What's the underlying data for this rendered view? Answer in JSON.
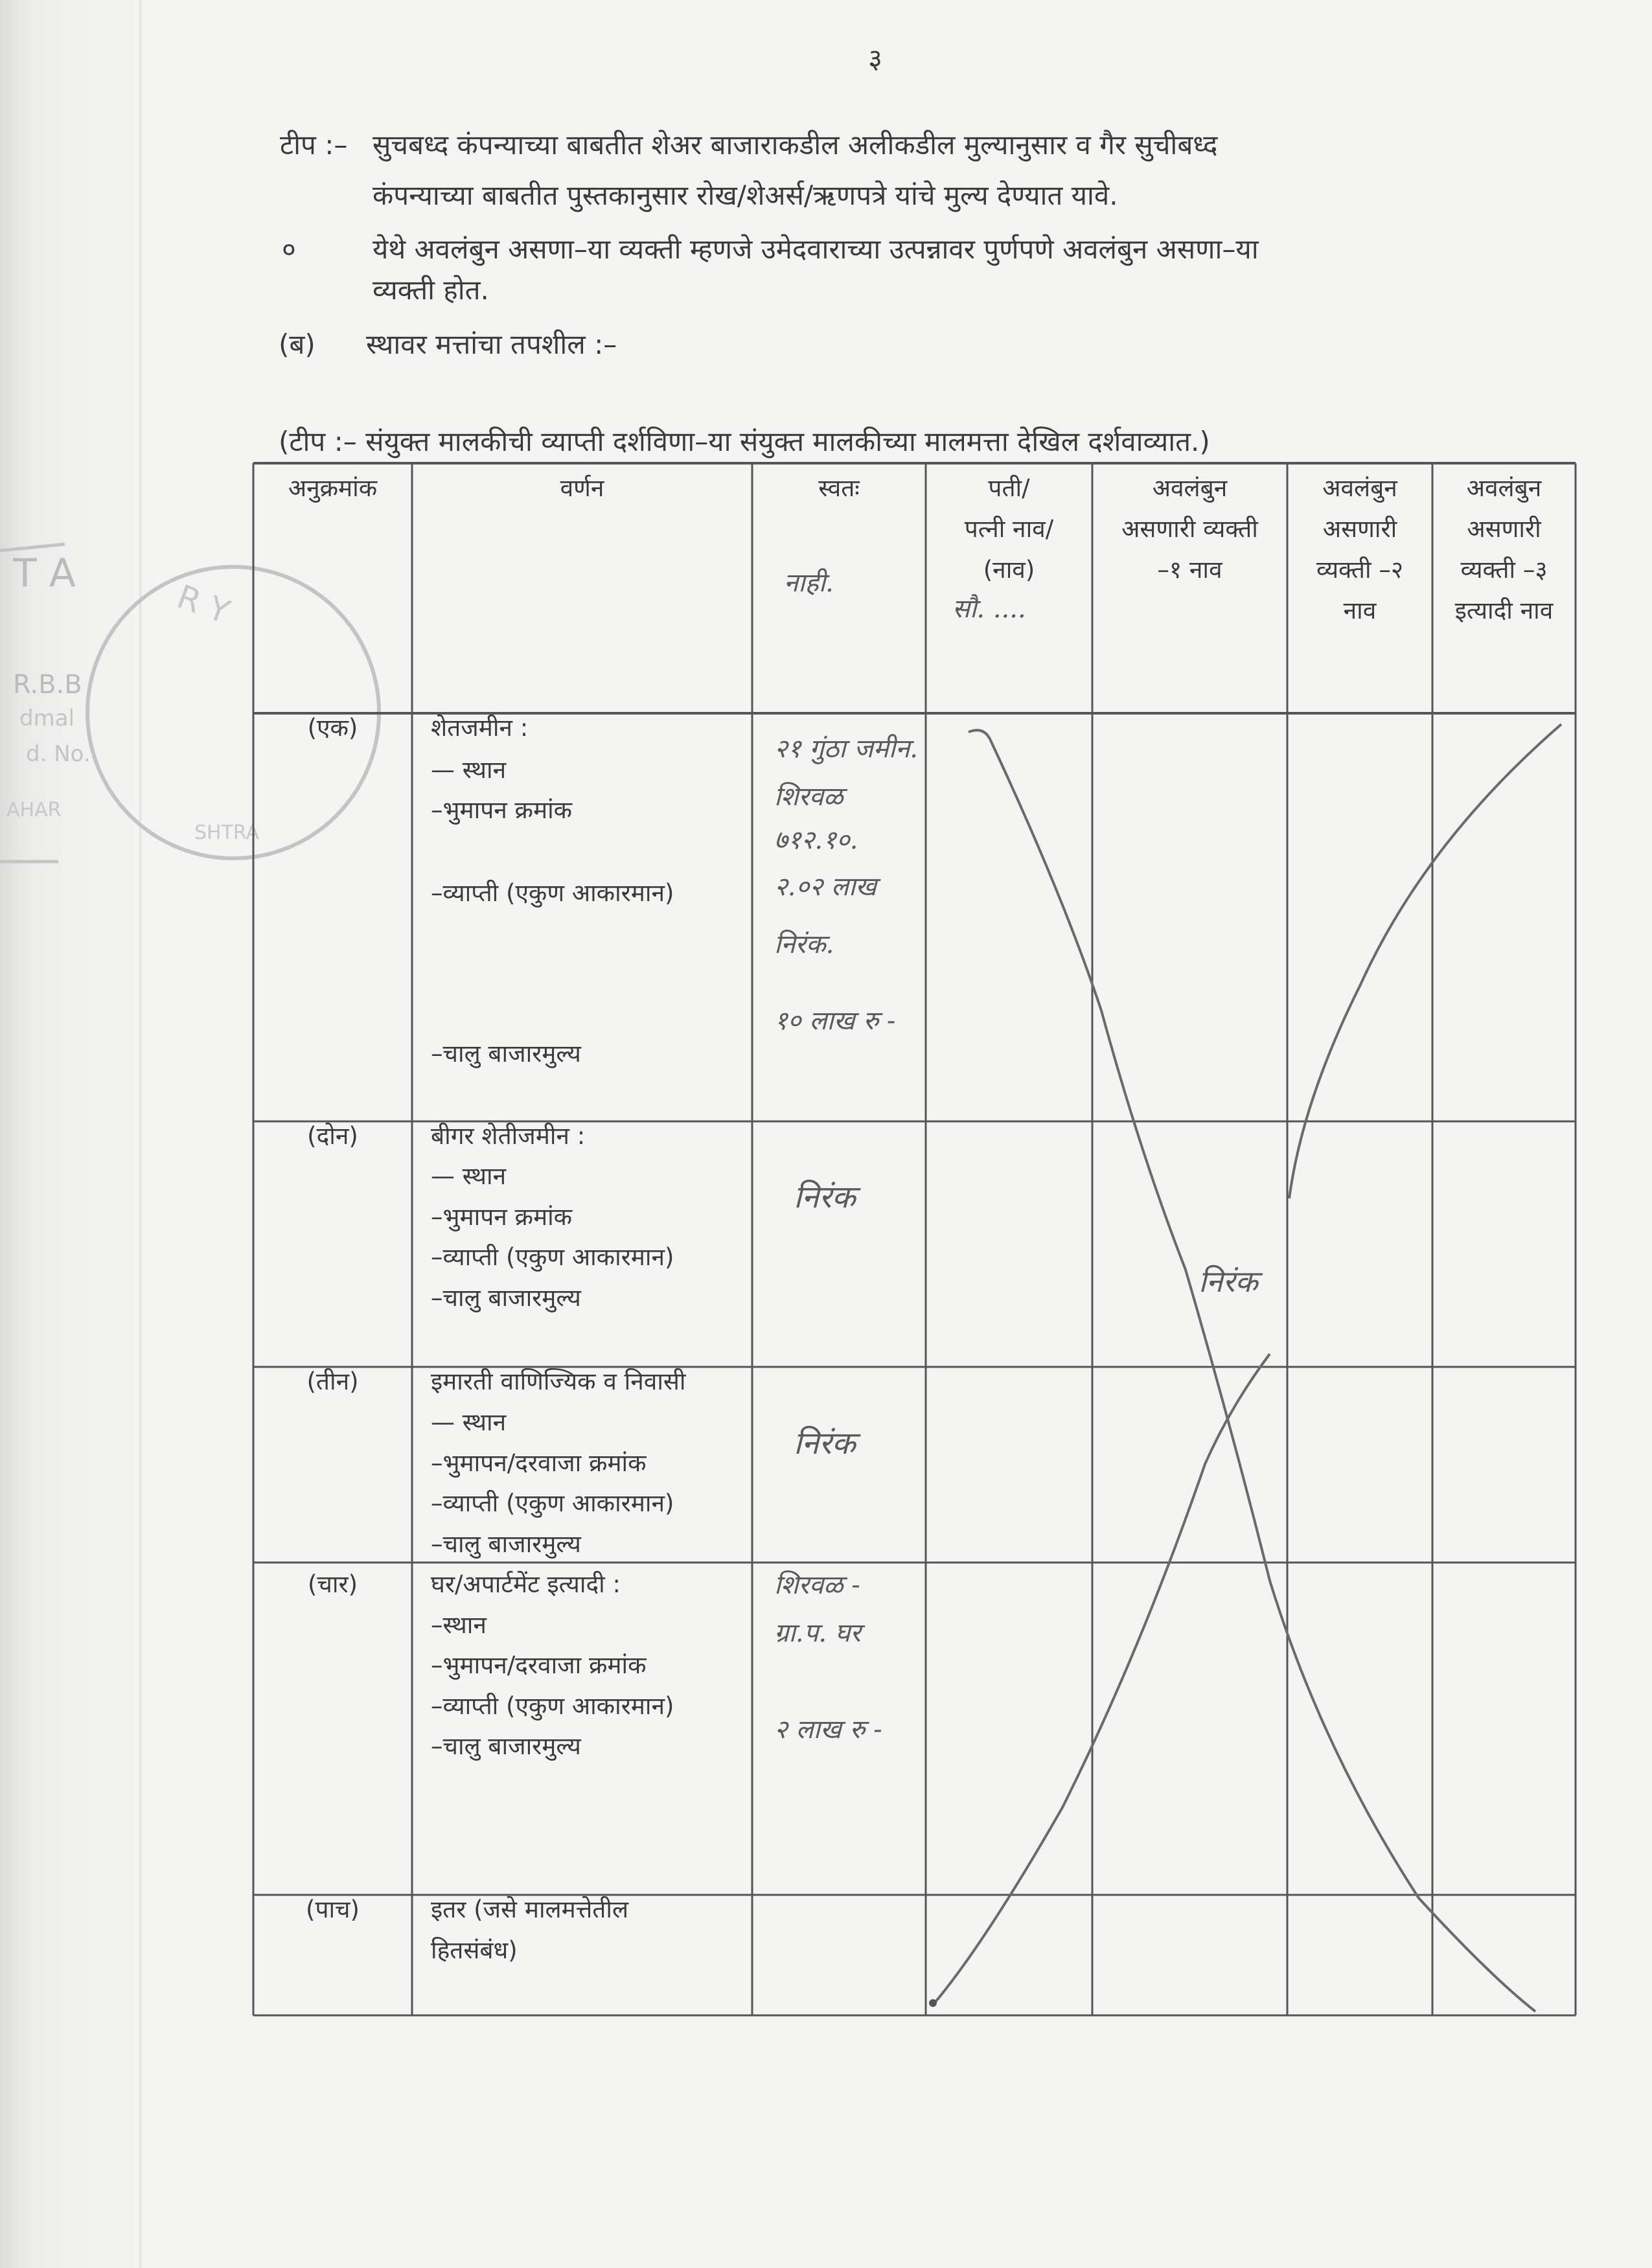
{
  "page_number": "३",
  "notes": {
    "note1_prefix": "टीप :–",
    "note1_line1": "सुचबध्द कंपन्याच्या बाबतीत शेअर बाजाराकडील अलीकडील मुल्यानुसार व गैर सुचीबध्द",
    "note1_line2": "कंपन्याच्या बाबतीत पुस्तकानुसार रोख/शेअर्स/ऋणपत्रे यांचे मुल्य देण्यात यावे.",
    "bullet": "०",
    "note2_line1": "येथे अवलंबुन असणा–या व्यक्ती म्हणजे उमेदवाराच्या उत्पन्नावर पुर्णपणे अवलंबुन असणा–या",
    "note2_line2": "व्यक्ती होत."
  },
  "section": {
    "label": "(ब)",
    "title": "स्थावर मत्तांचा तपशील :–"
  },
  "table_note": "(टीप :– संयुक्त मालकीची व्याप्ती दर्शविणा–या संयुक्त मालकीच्या मालमत्ता देखिल दर्शवाव्यात.)",
  "table": {
    "headers": [
      [
        "अनुक्रमांक"
      ],
      [
        "वर्णन"
      ],
      [
        "स्वतः"
      ],
      [
        "पती/",
        "पत्नी नाव/",
        "(नाव)"
      ],
      [
        "अवलंबुन",
        "असणारी व्यक्ती",
        "–१ नाव"
      ],
      [
        "अवलंबुन",
        "असणारी",
        "व्यक्ती –२",
        "नाव"
      ],
      [
        "अवलंबुन",
        "असणारी",
        "व्यक्ती –३",
        "इत्यादी नाव"
      ]
    ],
    "header_handwritten": {
      "self": "नाही.",
      "spouse": "सौ. ...."
    },
    "rows": [
      {
        "num": "(एक)",
        "lines": [
          "शेतजमीन :",
          "— स्थान",
          "–भुमापन क्रमांक",
          "–व्याप्ती (एकुण आकारमान)",
          "–चालु बाजारमुल्य"
        ],
        "self_handwritten": [
          "२१ गुंठा जमीन.",
          "शिरवळ",
          "७१२.१०.",
          "२.०२ लाख",
          "निरंक.",
          "१० लाख रु -"
        ]
      },
      {
        "num": "(दोन)",
        "lines": [
          "बीगर शेतीजमीन :",
          "— स्थान",
          "–भुमापन क्रमांक",
          "–व्याप्ती (एकुण आकारमान)",
          "–चालु बाजारमुल्य"
        ],
        "self_handwritten": [
          "निरंक"
        ]
      },
      {
        "num": "(तीन)",
        "lines": [
          "इमारती वाणिज्यिक व निवासी",
          "— स्थान",
          "–भुमापन/दरवाजा क्रमांक",
          "–व्याप्ती (एकुण आकारमान)",
          "–चालु बाजारमुल्य"
        ],
        "self_handwritten": [
          "निरंक"
        ]
      },
      {
        "num": "(चार)",
        "lines": [
          "घर/अपार्टमेंट इत्यादी :",
          "–स्थान",
          "–भुमापन/दरवाजा क्रमांक",
          "–व्याप्ती (एकुण आकारमान)",
          "–चालु बाजारमुल्य"
        ],
        "self_handwritten": [
          "शिरवळ -",
          "ग्रा.प. घर",
          "२ लाख रु -"
        ]
      },
      {
        "num": "(पाच)",
        "lines": [
          "इतर (जसे मालमत्तेतील",
          "हितसंबंध)"
        ],
        "self_handwritten": []
      }
    ],
    "cross_out_handwritten": "निरंक"
  },
  "stamp_text": "NOTARY, R.B.B., MAHARASHTRA",
  "colors": {
    "paper": "#f4f4f2",
    "ink": "#3a3a3a",
    "pencil": "#6a6a6a",
    "stamp": "#bdbdbd"
  }
}
